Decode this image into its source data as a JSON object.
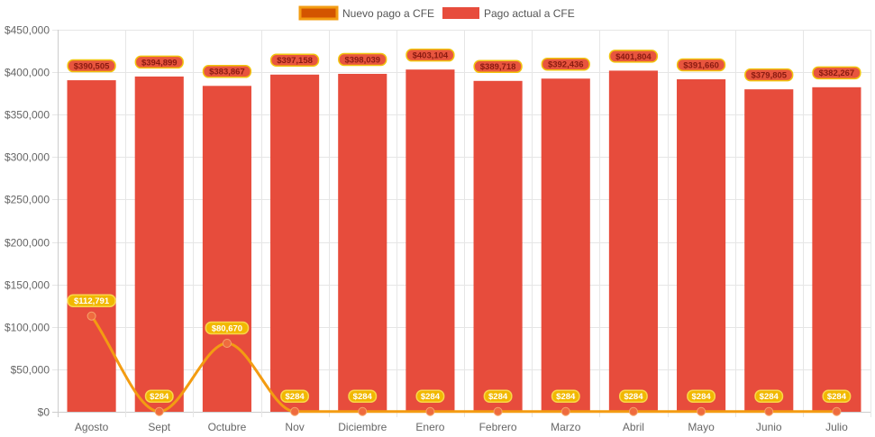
{
  "chart_data": {
    "type": "bar",
    "categories": [
      "Agosto",
      "Sept",
      "Octubre",
      "Nov",
      "Diciembre",
      "Enero",
      "Febrero",
      "Marzo",
      "Abril",
      "Mayo",
      "Junio",
      "Julio"
    ],
    "series": [
      {
        "name": "Nuevo pago a CFE",
        "type": "line",
        "color": "#f39c12",
        "values": [
          112791,
          284,
          80670,
          284,
          284,
          284,
          284,
          284,
          284,
          284,
          284,
          284
        ],
        "labels": [
          "$112,791",
          "$284",
          "$80,670",
          "$284",
          "$284",
          "$284",
          "$284",
          "$284",
          "$284",
          "$284",
          "$284",
          "$284"
        ]
      },
      {
        "name": "Pago actual a CFE",
        "type": "bar",
        "color": "#e74c3c",
        "values": [
          390505,
          394899,
          383867,
          397158,
          398039,
          403104,
          389718,
          392436,
          401804,
          391660,
          379805,
          382267
        ],
        "labels": [
          "$390,505",
          "$394,899",
          "$383,867",
          "$397,158",
          "$398,039",
          "$403,104",
          "$389,718",
          "$392,436",
          "$401,804",
          "$391,660",
          "$379,805",
          "$382,267"
        ]
      }
    ],
    "ylim": [
      0,
      450000
    ],
    "yticks": [
      0,
      50000,
      100000,
      150000,
      200000,
      250000,
      300000,
      350000,
      400000,
      450000
    ],
    "ytick_labels": [
      "$0",
      "$50,000",
      "$100,000",
      "$150,000",
      "$200,000",
      "$250,000",
      "$300,000",
      "$350,000",
      "$400,000",
      "$450,000"
    ],
    "grid": true,
    "legend_position": "top"
  }
}
